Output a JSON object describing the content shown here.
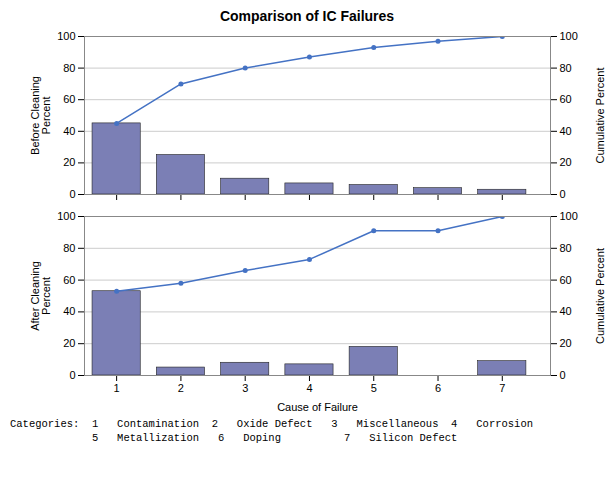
{
  "chart_data": [
    {
      "type": "bar",
      "title": "Comparison of IC Failures",
      "categories": [
        1,
        2,
        3,
        4,
        5,
        6,
        7
      ],
      "series": [
        {
          "type": "bar",
          "color": "#7B7FB5",
          "values": [
            45,
            25,
            10,
            7,
            6,
            4,
            3
          ]
        },
        {
          "type": "line",
          "axis": "y2",
          "color": "#4472C4",
          "marker": "circle",
          "values": [
            45,
            70,
            80,
            87,
            93,
            97,
            100
          ]
        }
      ],
      "ylabel": "Before Cleaning\nPercent",
      "y2label": "Cumulative Percent",
      "xlim": [
        0.5,
        7.75
      ],
      "xticks": [
        1,
        2,
        3,
        4,
        5,
        6,
        7
      ],
      "ylim": [
        0,
        100
      ],
      "yticks": [
        0,
        20,
        40,
        60,
        80,
        100
      ],
      "y2lim": [
        0,
        100
      ],
      "y2ticks": [
        0,
        20,
        40,
        60,
        80,
        100
      ],
      "grid": true,
      "tick_labels": "y"
    },
    {
      "type": "bar",
      "categories": [
        1,
        2,
        3,
        4,
        5,
        6,
        7
      ],
      "series": [
        {
          "type": "bar",
          "color": "#7B7FB5",
          "values": [
            53,
            5,
            8,
            7,
            18,
            0,
            9
          ]
        },
        {
          "type": "line",
          "axis": "y2",
          "color": "#4472C4",
          "marker": "circle",
          "values": [
            53,
            58,
            66,
            73,
            91,
            91,
            100
          ]
        }
      ],
      "xlabel": "Cause of Failure",
      "ylabel": "After Cleaning\nPercent",
      "y2label": "Cumulative Percent",
      "xlim": [
        0.5,
        7.75
      ],
      "xticks": [
        1,
        2,
        3,
        4,
        5,
        6,
        7
      ],
      "ylim": [
        0,
        100
      ],
      "yticks": [
        0,
        20,
        40,
        60,
        80,
        100
      ],
      "y2lim": [
        0,
        100
      ],
      "y2ticks": [
        0,
        20,
        40,
        60,
        80,
        100
      ],
      "grid": true,
      "annotations": [
        "Categories:  1   Contamination  2   Oxide Defect   3   Miscellaneous  4   Corrosion",
        "             5   Metallization   6   Doping          7   Silicon Defect"
      ]
    }
  ]
}
